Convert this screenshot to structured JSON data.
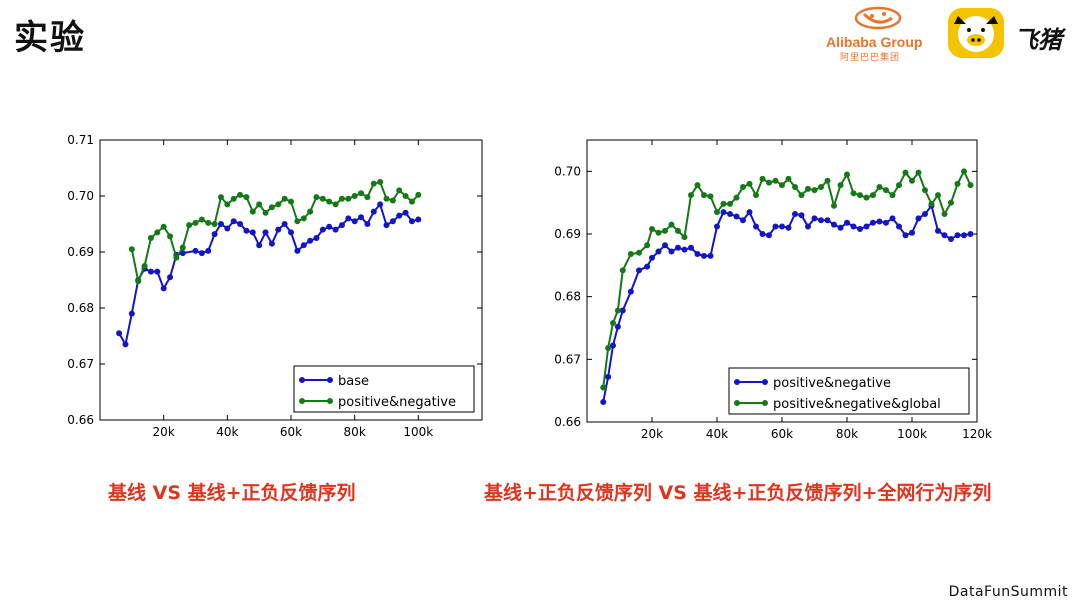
{
  "slide": {
    "title": "实验",
    "footer": "DataFunSummit",
    "caption_left": "基线 VS 基线+正负反馈序列",
    "caption_right": "基线+正负反馈序列 VS 基线+正负反馈序列+全网行为序列"
  },
  "logos": {
    "alibaba_text": "Alibaba Group",
    "alibaba_sub": "阿里巴巴集团",
    "fliggy_text": "飞猪"
  },
  "colors": {
    "caption": "#e0341e",
    "blue": "#1515c8",
    "green": "#157a15",
    "alibaba_orange": "#e8742a",
    "fliggy_yellow": "#f5c400"
  },
  "chart_data": [
    {
      "type": "line",
      "xlim": [
        0,
        120000
      ],
      "ylim": [
        0.66,
        0.71
      ],
      "xticks": [
        20000,
        40000,
        60000,
        80000,
        100000
      ],
      "xtick_labels": [
        "20k",
        "40k",
        "60k",
        "80k",
        "100k"
      ],
      "yticks": [
        0.66,
        0.67,
        0.68,
        0.69,
        0.7,
        0.71
      ],
      "ytick_labels": [
        "0.66",
        "0.67",
        "0.68",
        "0.69",
        "0.70",
        "0.71"
      ],
      "legend": "lower-right",
      "series": [
        {
          "name": "base",
          "color": "#1515c8",
          "x": [
            6000,
            8000,
            10000,
            12000,
            14000,
            16000,
            18000,
            20000,
            22000,
            24000,
            26000,
            30000,
            32000,
            34000,
            36000,
            38000,
            40000,
            42000,
            44000,
            46000,
            48000,
            50000,
            52000,
            54000,
            56000,
            58000,
            60000,
            62000,
            64000,
            66000,
            68000,
            70000,
            72000,
            74000,
            76000,
            78000,
            80000,
            82000,
            84000,
            86000,
            88000,
            90000,
            92000,
            94000,
            96000,
            98000,
            100000
          ],
          "y": [
            0.6755,
            0.6735,
            0.679,
            0.685,
            0.687,
            0.6865,
            0.6865,
            0.6835,
            0.6855,
            0.6895,
            0.6898,
            0.6902,
            0.6898,
            0.6902,
            0.6932,
            0.695,
            0.6942,
            0.6955,
            0.695,
            0.6938,
            0.6935,
            0.6912,
            0.6935,
            0.6915,
            0.694,
            0.695,
            0.6935,
            0.6902,
            0.6912,
            0.692,
            0.6925,
            0.694,
            0.6945,
            0.694,
            0.6948,
            0.696,
            0.6955,
            0.6962,
            0.695,
            0.6972,
            0.6985,
            0.6948,
            0.6955,
            0.6965,
            0.697,
            0.6955,
            0.6958
          ],
          "note": "x from 6k to 100k"
        },
        {
          "name": "positive&negative",
          "color": "#157a15",
          "x": [
            10000,
            12000,
            14000,
            16000,
            18000,
            20000,
            22000,
            24000,
            26000,
            28000,
            30000,
            32000,
            34000,
            36000,
            38000,
            40000,
            42000,
            44000,
            46000,
            48000,
            50000,
            52000,
            54000,
            56000,
            58000,
            60000,
            62000,
            64000,
            66000,
            68000,
            70000,
            72000,
            74000,
            76000,
            78000,
            80000,
            82000,
            84000,
            86000,
            88000,
            90000,
            92000,
            94000,
            96000,
            98000,
            100000
          ],
          "y": [
            0.6905,
            0.6848,
            0.6875,
            0.6925,
            0.6935,
            0.6945,
            0.6928,
            0.689,
            0.6908,
            0.6948,
            0.6952,
            0.6958,
            0.6952,
            0.695,
            0.6998,
            0.6985,
            0.6995,
            0.7002,
            0.6998,
            0.6972,
            0.6985,
            0.697,
            0.698,
            0.6985,
            0.6995,
            0.699,
            0.6955,
            0.696,
            0.6972,
            0.6998,
            0.6995,
            0.699,
            0.6985,
            0.6995,
            0.6995,
            0.7,
            0.7005,
            0.6998,
            0.7022,
            0.7025,
            0.6995,
            0.6992,
            0.701,
            0.7,
            0.699,
            0.7002
          ],
          "note": ""
        }
      ]
    },
    {
      "type": "line",
      "xlim": [
        0,
        120000
      ],
      "ylim": [
        0.66,
        0.705
      ],
      "xticks": [
        20000,
        40000,
        60000,
        80000,
        100000,
        120000
      ],
      "xtick_labels": [
        "20k",
        "40k",
        "60k",
        "80k",
        "100k",
        "120k"
      ],
      "yticks": [
        0.66,
        0.67,
        0.68,
        0.69,
        0.7
      ],
      "ytick_labels": [
        "0.66",
        "0.67",
        "0.68",
        "0.69",
        "0.70"
      ],
      "legend": "lower-right",
      "series": [
        {
          "name": "positive&negative",
          "color": "#1515c8",
          "x": [
            5000,
            6500,
            8000,
            9500,
            11000,
            13500,
            16000,
            18500,
            20000,
            22000,
            24000,
            26000,
            28000,
            30000,
            32000,
            34000,
            36000,
            38000,
            40000,
            42000,
            44000,
            46000,
            48000,
            50000,
            52000,
            54000,
            56000,
            58000,
            60000,
            62000,
            64000,
            66000,
            68000,
            70000,
            72000,
            74000,
            76000,
            78000,
            80000,
            82000,
            84000,
            86000,
            88000,
            90000,
            92000,
            94000,
            96000,
            98000,
            100000,
            102000,
            104000,
            106000,
            108000,
            110000,
            112000,
            114000,
            116000,
            118000
          ],
          "y": [
            0.6632,
            0.6672,
            0.6722,
            0.6752,
            0.6778,
            0.6808,
            0.6842,
            0.6848,
            0.6862,
            0.6872,
            0.6882,
            0.6872,
            0.6878,
            0.6875,
            0.6878,
            0.6868,
            0.6865,
            0.6865,
            0.6912,
            0.6935,
            0.6932,
            0.6928,
            0.6922,
            0.6935,
            0.6912,
            0.69,
            0.6898,
            0.6912,
            0.6912,
            0.691,
            0.6932,
            0.693,
            0.6912,
            0.6925,
            0.6922,
            0.6922,
            0.6915,
            0.691,
            0.6918,
            0.6912,
            0.6908,
            0.6912,
            0.6918,
            0.692,
            0.6918,
            0.6925,
            0.6912,
            0.6898,
            0.6902,
            0.6925,
            0.6932,
            0.6945,
            0.6905,
            0.6898,
            0.6892,
            0.6898,
            0.6898,
            0.69
          ],
          "note": ""
        },
        {
          "name": "positive&negative&global",
          "color": "#157a15",
          "x": [
            5000,
            6500,
            8000,
            9500,
            11000,
            13500,
            16000,
            18500,
            20000,
            22000,
            24000,
            26000,
            28000,
            30000,
            32000,
            34000,
            36000,
            38000,
            40000,
            42000,
            44000,
            46000,
            48000,
            50000,
            52000,
            54000,
            56000,
            58000,
            60000,
            62000,
            64000,
            66000,
            68000,
            70000,
            72000,
            74000,
            76000,
            78000,
            80000,
            82000,
            84000,
            86000,
            88000,
            90000,
            92000,
            94000,
            96000,
            98000,
            100000,
            102000,
            104000,
            106000,
            108000,
            110000,
            112000,
            114000,
            116000,
            118000
          ],
          "y": [
            0.6655,
            0.6718,
            0.6758,
            0.6778,
            0.6842,
            0.6868,
            0.687,
            0.6882,
            0.6908,
            0.6902,
            0.6905,
            0.6915,
            0.6905,
            0.6895,
            0.6962,
            0.6978,
            0.6962,
            0.696,
            0.6935,
            0.6948,
            0.6948,
            0.6958,
            0.6975,
            0.698,
            0.6962,
            0.6988,
            0.6982,
            0.6985,
            0.6978,
            0.6988,
            0.6975,
            0.6962,
            0.6972,
            0.697,
            0.6975,
            0.6985,
            0.6945,
            0.6978,
            0.6995,
            0.6965,
            0.6962,
            0.6958,
            0.6962,
            0.6975,
            0.697,
            0.6962,
            0.6978,
            0.6998,
            0.6985,
            0.6998,
            0.697,
            0.6948,
            0.6962,
            0.6932,
            0.695,
            0.698,
            0.7,
            0.6978
          ],
          "note": ""
        }
      ]
    }
  ]
}
